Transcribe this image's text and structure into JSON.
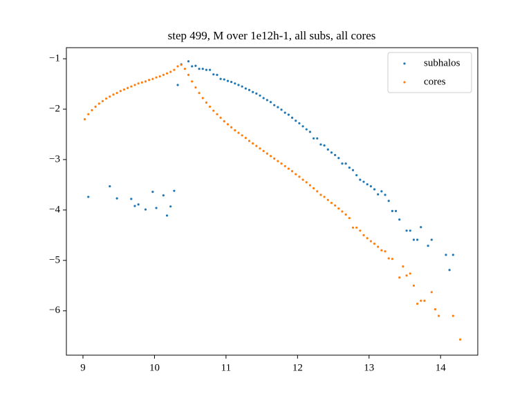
{
  "chart_data": {
    "type": "scatter",
    "title": "step 499, M over 1e12h-1, all subs, all cores",
    "xlim": [
      8.768,
      14.52
    ],
    "ylim": [
      -6.88,
      -0.78
    ],
    "xticks": [
      9,
      10,
      11,
      12,
      13,
      14
    ],
    "yticks": [
      {
        "value": -1,
        "label": "−1"
      },
      {
        "value": -2,
        "label": "−2"
      },
      {
        "value": -3,
        "label": "−3"
      },
      {
        "value": -4,
        "label": "−4"
      },
      {
        "value": -5,
        "label": "−5"
      },
      {
        "value": -6,
        "label": "−6"
      }
    ],
    "legend": "upper right",
    "series": [
      {
        "name": "subhalos",
        "color": "#1f77b4",
        "x": [
          9.075,
          9.375,
          9.475,
          9.675,
          9.725,
          9.775,
          9.875,
          9.975,
          10.025,
          10.125,
          10.175,
          10.225,
          10.275,
          10.325,
          10.375,
          10.475,
          10.525,
          10.575,
          10.625,
          10.675,
          10.725,
          10.775,
          10.825,
          10.875,
          10.925,
          10.975,
          11.025,
          11.075,
          11.125,
          11.175,
          11.225,
          11.275,
          11.325,
          11.375,
          11.425,
          11.475,
          11.525,
          11.575,
          11.625,
          11.675,
          11.725,
          11.775,
          11.825,
          11.875,
          11.925,
          11.975,
          12.025,
          12.075,
          12.125,
          12.175,
          12.225,
          12.275,
          12.325,
          12.375,
          12.425,
          12.475,
          12.525,
          12.575,
          12.625,
          12.675,
          12.725,
          12.775,
          12.825,
          12.875,
          12.925,
          12.975,
          13.025,
          13.075,
          13.125,
          13.175,
          13.225,
          13.275,
          13.325,
          13.375,
          13.425,
          13.525,
          13.575,
          13.625,
          13.675,
          13.725,
          13.825,
          13.875,
          14.075,
          14.125,
          14.175
        ],
        "values": [
          -3.74,
          -3.53,
          -3.77,
          -3.78,
          -3.92,
          -3.89,
          -3.99,
          -3.64,
          -3.96,
          -3.71,
          -4.11,
          -3.93,
          -3.62,
          -1.52,
          -1.11,
          -1.05,
          -1.15,
          -1.14,
          -1.2,
          -1.2,
          -1.22,
          -1.22,
          -1.31,
          -1.32,
          -1.4,
          -1.41,
          -1.44,
          -1.46,
          -1.49,
          -1.52,
          -1.55,
          -1.59,
          -1.62,
          -1.66,
          -1.69,
          -1.73,
          -1.78,
          -1.82,
          -1.86,
          -1.92,
          -1.96,
          -2.01,
          -2.07,
          -2.11,
          -2.17,
          -2.23,
          -2.28,
          -2.34,
          -2.4,
          -2.45,
          -2.58,
          -2.58,
          -2.7,
          -2.72,
          -2.8,
          -2.86,
          -2.91,
          -2.97,
          -3.08,
          -3.08,
          -3.16,
          -3.21,
          -3.31,
          -3.4,
          -3.44,
          -3.49,
          -3.53,
          -3.59,
          -3.69,
          -3.63,
          -3.7,
          -3.82,
          -4.02,
          -4.02,
          -4.19,
          -4.41,
          -4.41,
          -4.59,
          -4.59,
          -4.34,
          -4.71,
          -4.59,
          -4.89,
          -5.19,
          -4.89
        ]
      },
      {
        "name": "cores",
        "color": "#ff7f0e",
        "x": [
          9.025,
          9.075,
          9.125,
          9.175,
          9.225,
          9.275,
          9.325,
          9.375,
          9.425,
          9.475,
          9.525,
          9.575,
          9.625,
          9.675,
          9.725,
          9.775,
          9.825,
          9.875,
          9.925,
          9.975,
          10.025,
          10.075,
          10.125,
          10.175,
          10.225,
          10.275,
          10.325,
          10.375,
          10.425,
          10.475,
          10.525,
          10.575,
          10.625,
          10.675,
          10.725,
          10.775,
          10.825,
          10.875,
          10.925,
          10.975,
          11.025,
          11.075,
          11.125,
          11.175,
          11.225,
          11.275,
          11.325,
          11.375,
          11.425,
          11.475,
          11.525,
          11.575,
          11.625,
          11.675,
          11.725,
          11.775,
          11.825,
          11.875,
          11.925,
          11.975,
          12.025,
          12.075,
          12.125,
          12.175,
          12.225,
          12.275,
          12.325,
          12.375,
          12.425,
          12.475,
          12.525,
          12.575,
          12.625,
          12.675,
          12.725,
          12.775,
          12.825,
          12.875,
          12.925,
          12.975,
          13.025,
          13.075,
          13.125,
          13.175,
          13.225,
          13.275,
          13.325,
          13.425,
          13.475,
          13.525,
          13.575,
          13.625,
          13.675,
          13.725,
          13.775,
          13.875,
          13.925,
          13.975,
          14.175,
          14.275
        ],
        "values": [
          -2.2,
          -2.1,
          -2.02,
          -1.95,
          -1.89,
          -1.84,
          -1.79,
          -1.75,
          -1.71,
          -1.68,
          -1.64,
          -1.61,
          -1.58,
          -1.55,
          -1.52,
          -1.49,
          -1.47,
          -1.45,
          -1.42,
          -1.4,
          -1.37,
          -1.35,
          -1.32,
          -1.29,
          -1.26,
          -1.22,
          -1.15,
          -1.12,
          -1.2,
          -1.32,
          -1.45,
          -1.57,
          -1.68,
          -1.78,
          -1.87,
          -1.95,
          -2.03,
          -2.1,
          -2.17,
          -2.24,
          -2.3,
          -2.36,
          -2.42,
          -2.47,
          -2.52,
          -2.57,
          -2.63,
          -2.68,
          -2.73,
          -2.78,
          -2.83,
          -2.88,
          -2.93,
          -2.98,
          -3.03,
          -3.08,
          -3.13,
          -3.18,
          -3.23,
          -3.29,
          -3.34,
          -3.4,
          -3.45,
          -3.51,
          -3.57,
          -3.63,
          -3.7,
          -3.74,
          -3.8,
          -3.86,
          -3.91,
          -3.97,
          -4.03,
          -4.09,
          -4.16,
          -4.35,
          -4.35,
          -4.41,
          -4.5,
          -4.56,
          -4.62,
          -4.67,
          -4.73,
          -4.8,
          -4.82,
          -4.96,
          -4.97,
          -5.34,
          -5.12,
          -5.3,
          -5.26,
          -5.5,
          -5.86,
          -5.8,
          -5.8,
          -5.63,
          -5.97,
          -6.1,
          -6.1,
          -6.57
        ]
      }
    ]
  }
}
